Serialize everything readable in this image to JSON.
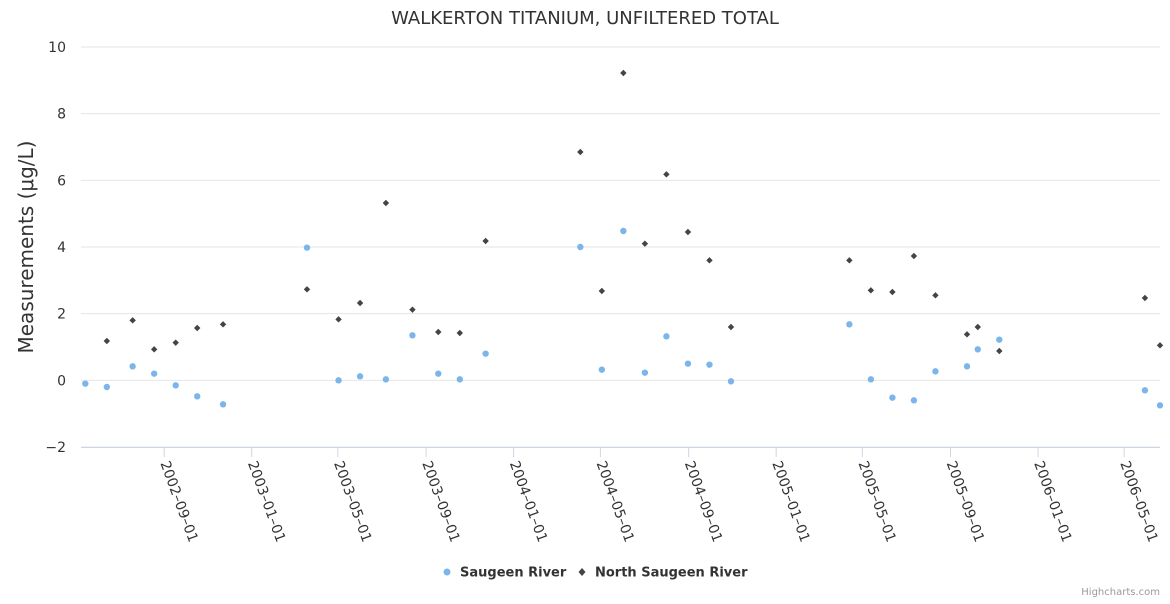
{
  "chart_data": {
    "type": "scatter",
    "title": "WALKERTON TITANIUM, UNFILTERED TOTAL",
    "xlabel": "",
    "ylabel": "Measurements (μg/L)",
    "ylim": [
      -2,
      10
    ],
    "yticks": [
      -2,
      0,
      2,
      4,
      6,
      8,
      10
    ],
    "xlim": [
      "2002-05-08",
      "2006-06-20"
    ],
    "xticks": [
      "2002-09-01",
      "2003-01-01",
      "2003-05-01",
      "2003-09-01",
      "2004-01-01",
      "2004-05-01",
      "2004-09-01",
      "2005-01-01",
      "2005-05-01",
      "2005-09-01",
      "2006-01-01",
      "2006-05-01"
    ],
    "grid": "horizontal",
    "legend_position": "bottom-center",
    "series": [
      {
        "name": "Saugeen River",
        "color": "#7cb5ec",
        "marker": "circle",
        "points": [
          {
            "x": "2002-05-14",
            "y": -0.1
          },
          {
            "x": "2002-06-13",
            "y": -0.2
          },
          {
            "x": "2002-07-19",
            "y": 0.42
          },
          {
            "x": "2002-08-18",
            "y": 0.2
          },
          {
            "x": "2002-09-17",
            "y": -0.15
          },
          {
            "x": "2002-10-17",
            "y": -0.48
          },
          {
            "x": "2002-11-22",
            "y": -0.72
          },
          {
            "x": "2003-03-19",
            "y": 3.98
          },
          {
            "x": "2003-05-02",
            "y": 0.0
          },
          {
            "x": "2003-06-01",
            "y": 0.12
          },
          {
            "x": "2003-07-07",
            "y": 0.03
          },
          {
            "x": "2003-08-13",
            "y": 1.35
          },
          {
            "x": "2003-09-18",
            "y": 0.2
          },
          {
            "x": "2003-10-18",
            "y": 0.03
          },
          {
            "x": "2003-11-23",
            "y": 0.8
          },
          {
            "x": "2004-04-03",
            "y": 4.0
          },
          {
            "x": "2004-05-03",
            "y": 0.32
          },
          {
            "x": "2004-06-02",
            "y": 4.48
          },
          {
            "x": "2004-07-02",
            "y": 0.23
          },
          {
            "x": "2004-08-01",
            "y": 1.32
          },
          {
            "x": "2004-08-31",
            "y": 0.5
          },
          {
            "x": "2004-09-30",
            "y": 0.47
          },
          {
            "x": "2004-10-30",
            "y": -0.03
          },
          {
            "x": "2005-04-13",
            "y": 1.68
          },
          {
            "x": "2005-05-13",
            "y": 0.03
          },
          {
            "x": "2005-06-12",
            "y": -0.52
          },
          {
            "x": "2005-07-12",
            "y": -0.6
          },
          {
            "x": "2005-08-11",
            "y": 0.27
          },
          {
            "x": "2005-09-24",
            "y": 0.42
          },
          {
            "x": "2005-10-09",
            "y": 0.93
          },
          {
            "x": "2005-11-08",
            "y": 1.22
          },
          {
            "x": "2006-05-30",
            "y": -0.3
          },
          {
            "x": "2006-06-20",
            "y": -0.75
          }
        ]
      },
      {
        "name": "North Saugeen River",
        "color": "#434348",
        "marker": "diamond",
        "points": [
          {
            "x": "2002-06-13",
            "y": 1.18
          },
          {
            "x": "2002-07-19",
            "y": 1.8
          },
          {
            "x": "2002-08-18",
            "y": 0.93
          },
          {
            "x": "2002-09-17",
            "y": 1.13
          },
          {
            "x": "2002-10-17",
            "y": 1.57
          },
          {
            "x": "2002-11-22",
            "y": 1.68
          },
          {
            "x": "2003-03-19",
            "y": 2.73
          },
          {
            "x": "2003-05-02",
            "y": 1.83
          },
          {
            "x": "2003-06-01",
            "y": 2.32
          },
          {
            "x": "2003-07-07",
            "y": 5.32
          },
          {
            "x": "2003-08-13",
            "y": 2.12
          },
          {
            "x": "2003-09-18",
            "y": 1.45
          },
          {
            "x": "2003-10-18",
            "y": 1.42
          },
          {
            "x": "2003-11-23",
            "y": 4.18
          },
          {
            "x": "2004-04-03",
            "y": 6.85
          },
          {
            "x": "2004-05-03",
            "y": 2.68
          },
          {
            "x": "2004-06-02",
            "y": 9.22
          },
          {
            "x": "2004-07-02",
            "y": 4.1
          },
          {
            "x": "2004-08-01",
            "y": 6.18
          },
          {
            "x": "2004-08-31",
            "y": 4.45
          },
          {
            "x": "2004-09-30",
            "y": 3.6
          },
          {
            "x": "2004-10-30",
            "y": 1.6
          },
          {
            "x": "2005-04-13",
            "y": 3.6
          },
          {
            "x": "2005-05-13",
            "y": 2.7
          },
          {
            "x": "2005-06-12",
            "y": 2.65
          },
          {
            "x": "2005-07-12",
            "y": 3.73
          },
          {
            "x": "2005-08-11",
            "y": 2.55
          },
          {
            "x": "2005-09-24",
            "y": 1.38
          },
          {
            "x": "2005-10-09",
            "y": 1.6
          },
          {
            "x": "2005-11-08",
            "y": 0.88
          },
          {
            "x": "2006-05-30",
            "y": 2.47
          },
          {
            "x": "2006-06-20",
            "y": 1.05
          }
        ]
      }
    ]
  },
  "credits": "Highcharts.com"
}
